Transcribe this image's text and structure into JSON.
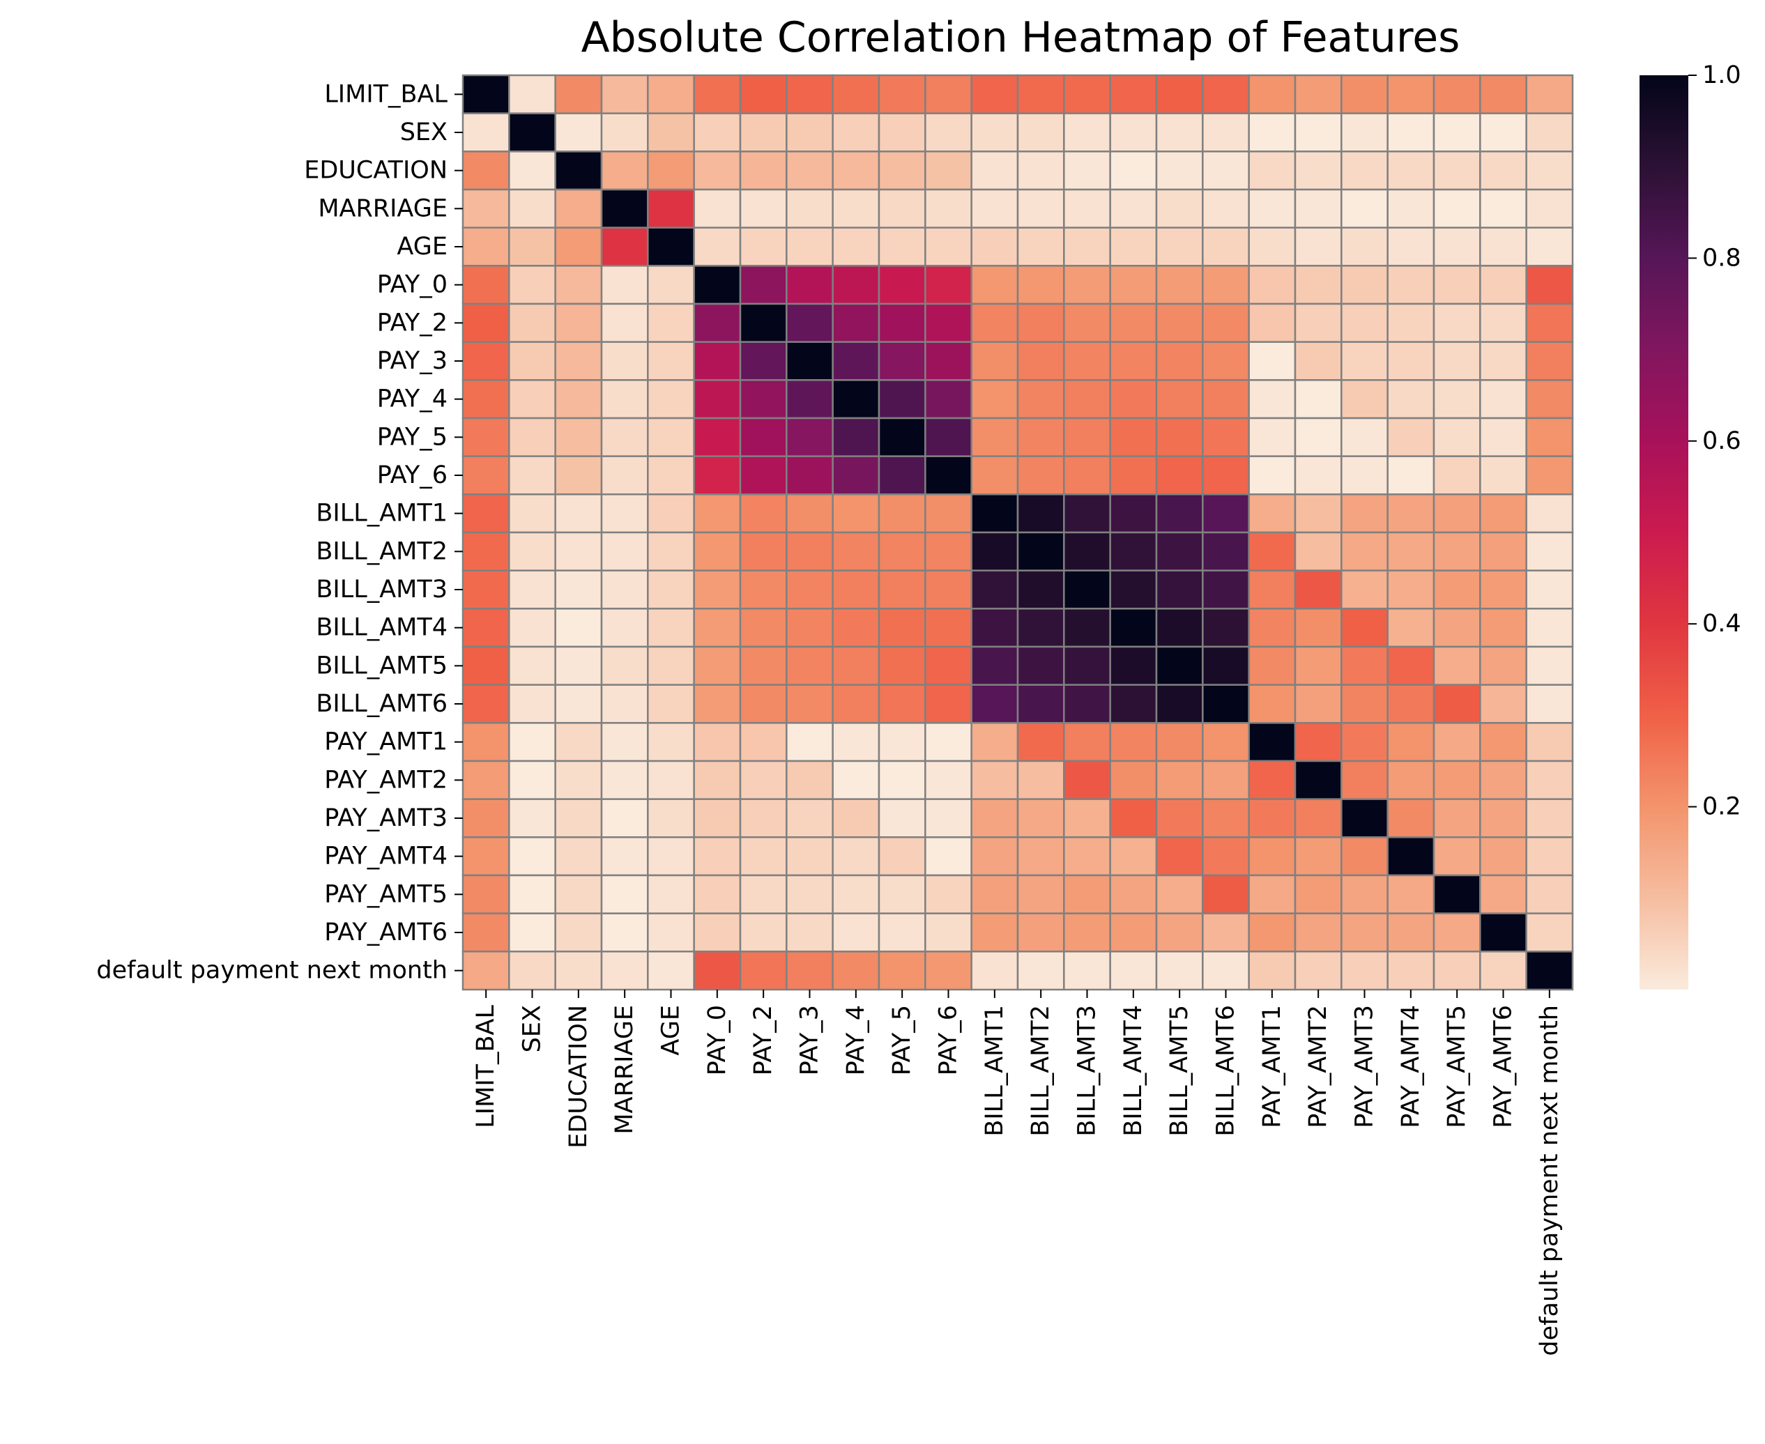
{
  "chart_data": {
    "type": "heatmap",
    "title": "Absolute Correlation Heatmap of Features",
    "xlabel": "",
    "ylabel": "",
    "labels": [
      "LIMIT_BAL",
      "SEX",
      "EDUCATION",
      "MARRIAGE",
      "AGE",
      "PAY_0",
      "PAY_2",
      "PAY_3",
      "PAY_4",
      "PAY_5",
      "PAY_6",
      "BILL_AMT1",
      "BILL_AMT2",
      "BILL_AMT3",
      "BILL_AMT4",
      "BILL_AMT5",
      "BILL_AMT6",
      "PAY_AMT1",
      "PAY_AMT2",
      "PAY_AMT3",
      "PAY_AMT4",
      "PAY_AMT5",
      "PAY_AMT6",
      "default payment next month"
    ],
    "values": [
      [
        1.0,
        0.02,
        0.22,
        0.11,
        0.14,
        0.27,
        0.3,
        0.29,
        0.27,
        0.25,
        0.24,
        0.29,
        0.28,
        0.28,
        0.29,
        0.3,
        0.29,
        0.2,
        0.18,
        0.21,
        0.2,
        0.22,
        0.22,
        0.15
      ],
      [
        0.02,
        1.0,
        0.01,
        0.03,
        0.09,
        0.06,
        0.07,
        0.07,
        0.06,
        0.06,
        0.04,
        0.03,
        0.03,
        0.02,
        0.02,
        0.02,
        0.02,
        0.0,
        0.0,
        0.01,
        0.0,
        0.0,
        0.0,
        0.04
      ],
      [
        0.22,
        0.01,
        1.0,
        0.14,
        0.18,
        0.11,
        0.12,
        0.11,
        0.11,
        0.1,
        0.09,
        0.02,
        0.02,
        0.01,
        0.0,
        0.01,
        0.01,
        0.04,
        0.03,
        0.04,
        0.04,
        0.04,
        0.04,
        0.03
      ],
      [
        0.11,
        0.03,
        0.14,
        1.0,
        0.41,
        0.02,
        0.02,
        0.03,
        0.03,
        0.04,
        0.03,
        0.02,
        0.02,
        0.02,
        0.02,
        0.03,
        0.02,
        0.01,
        0.01,
        0.0,
        0.01,
        0.0,
        0.0,
        0.02
      ],
      [
        0.14,
        0.09,
        0.18,
        0.41,
        1.0,
        0.04,
        0.05,
        0.05,
        0.05,
        0.05,
        0.05,
        0.06,
        0.05,
        0.05,
        0.05,
        0.05,
        0.05,
        0.03,
        0.02,
        0.03,
        0.02,
        0.02,
        0.02,
        0.01
      ],
      [
        0.27,
        0.06,
        0.11,
        0.02,
        0.04,
        1.0,
        0.67,
        0.57,
        0.54,
        0.51,
        0.47,
        0.19,
        0.19,
        0.18,
        0.18,
        0.18,
        0.18,
        0.08,
        0.07,
        0.07,
        0.06,
        0.06,
        0.06,
        0.32
      ],
      [
        0.3,
        0.07,
        0.12,
        0.02,
        0.05,
        0.67,
        1.0,
        0.77,
        0.66,
        0.62,
        0.58,
        0.23,
        0.24,
        0.22,
        0.22,
        0.22,
        0.22,
        0.08,
        0.06,
        0.06,
        0.05,
        0.04,
        0.04,
        0.26
      ],
      [
        0.29,
        0.07,
        0.11,
        0.03,
        0.05,
        0.57,
        0.77,
        1.0,
        0.78,
        0.69,
        0.63,
        0.21,
        0.24,
        0.23,
        0.23,
        0.23,
        0.22,
        0.0,
        0.07,
        0.05,
        0.05,
        0.04,
        0.04,
        0.24
      ],
      [
        0.27,
        0.06,
        0.11,
        0.03,
        0.05,
        0.54,
        0.66,
        0.78,
        1.0,
        0.82,
        0.72,
        0.2,
        0.23,
        0.24,
        0.25,
        0.24,
        0.24,
        0.01,
        0.0,
        0.07,
        0.04,
        0.03,
        0.02,
        0.22
      ],
      [
        0.25,
        0.06,
        0.1,
        0.04,
        0.05,
        0.51,
        0.62,
        0.69,
        0.82,
        1.0,
        0.82,
        0.21,
        0.23,
        0.24,
        0.27,
        0.27,
        0.26,
        0.01,
        0.0,
        0.01,
        0.06,
        0.03,
        0.02,
        0.2
      ],
      [
        0.24,
        0.04,
        0.09,
        0.03,
        0.05,
        0.47,
        0.58,
        0.63,
        0.72,
        0.82,
        1.0,
        0.21,
        0.23,
        0.24,
        0.27,
        0.29,
        0.29,
        0.0,
        0.01,
        0.01,
        0.0,
        0.05,
        0.03,
        0.19
      ],
      [
        0.29,
        0.03,
        0.02,
        0.02,
        0.06,
        0.19,
        0.23,
        0.21,
        0.2,
        0.21,
        0.21,
        1.0,
        0.95,
        0.89,
        0.86,
        0.83,
        0.8,
        0.14,
        0.1,
        0.16,
        0.16,
        0.17,
        0.18,
        0.02
      ],
      [
        0.28,
        0.03,
        0.02,
        0.02,
        0.05,
        0.19,
        0.24,
        0.24,
        0.23,
        0.23,
        0.23,
        0.95,
        1.0,
        0.93,
        0.89,
        0.86,
        0.83,
        0.28,
        0.1,
        0.15,
        0.15,
        0.16,
        0.17,
        0.01
      ],
      [
        0.28,
        0.02,
        0.01,
        0.02,
        0.05,
        0.18,
        0.22,
        0.23,
        0.24,
        0.24,
        0.24,
        0.89,
        0.93,
        1.0,
        0.92,
        0.88,
        0.85,
        0.24,
        0.32,
        0.13,
        0.14,
        0.18,
        0.18,
        0.01
      ],
      [
        0.29,
        0.02,
        0.0,
        0.02,
        0.05,
        0.18,
        0.22,
        0.23,
        0.25,
        0.27,
        0.27,
        0.86,
        0.89,
        0.92,
        1.0,
        0.94,
        0.9,
        0.23,
        0.21,
        0.3,
        0.13,
        0.16,
        0.18,
        0.01
      ],
      [
        0.3,
        0.02,
        0.01,
        0.03,
        0.05,
        0.18,
        0.22,
        0.23,
        0.24,
        0.27,
        0.29,
        0.83,
        0.86,
        0.88,
        0.94,
        1.0,
        0.95,
        0.22,
        0.18,
        0.25,
        0.29,
        0.14,
        0.16,
        0.01
      ],
      [
        0.29,
        0.02,
        0.01,
        0.02,
        0.05,
        0.18,
        0.22,
        0.22,
        0.24,
        0.26,
        0.29,
        0.8,
        0.83,
        0.85,
        0.9,
        0.95,
        1.0,
        0.2,
        0.17,
        0.23,
        0.25,
        0.31,
        0.12,
        0.01
      ],
      [
        0.2,
        0.0,
        0.04,
        0.01,
        0.03,
        0.08,
        0.08,
        0.0,
        0.01,
        0.01,
        0.0,
        0.14,
        0.28,
        0.24,
        0.23,
        0.22,
        0.2,
        1.0,
        0.29,
        0.25,
        0.2,
        0.15,
        0.19,
        0.07
      ],
      [
        0.18,
        0.0,
        0.03,
        0.01,
        0.02,
        0.07,
        0.06,
        0.07,
        0.0,
        0.0,
        0.01,
        0.1,
        0.1,
        0.32,
        0.21,
        0.18,
        0.17,
        0.29,
        1.0,
        0.24,
        0.18,
        0.18,
        0.16,
        0.06
      ],
      [
        0.21,
        0.01,
        0.04,
        0.0,
        0.03,
        0.07,
        0.06,
        0.05,
        0.07,
        0.01,
        0.01,
        0.16,
        0.15,
        0.13,
        0.3,
        0.25,
        0.23,
        0.25,
        0.24,
        1.0,
        0.22,
        0.16,
        0.16,
        0.06
      ],
      [
        0.2,
        0.0,
        0.04,
        0.01,
        0.02,
        0.06,
        0.05,
        0.05,
        0.04,
        0.06,
        0.0,
        0.16,
        0.15,
        0.14,
        0.13,
        0.29,
        0.25,
        0.2,
        0.18,
        0.22,
        1.0,
        0.15,
        0.16,
        0.06
      ],
      [
        0.22,
        0.0,
        0.04,
        0.0,
        0.02,
        0.06,
        0.04,
        0.04,
        0.03,
        0.03,
        0.05,
        0.17,
        0.16,
        0.18,
        0.16,
        0.14,
        0.31,
        0.15,
        0.18,
        0.16,
        0.15,
        1.0,
        0.15,
        0.06
      ],
      [
        0.22,
        0.0,
        0.04,
        0.0,
        0.02,
        0.06,
        0.04,
        0.04,
        0.02,
        0.02,
        0.03,
        0.18,
        0.17,
        0.18,
        0.18,
        0.16,
        0.12,
        0.19,
        0.16,
        0.16,
        0.16,
        0.15,
        1.0,
        0.05
      ],
      [
        0.15,
        0.04,
        0.03,
        0.02,
        0.01,
        0.32,
        0.26,
        0.24,
        0.22,
        0.2,
        0.19,
        0.02,
        0.01,
        0.01,
        0.01,
        0.01,
        0.01,
        0.07,
        0.06,
        0.06,
        0.06,
        0.06,
        0.05,
        1.0
      ]
    ],
    "colorbar": {
      "ticks": [
        "0.2",
        "0.4",
        "0.6",
        "0.8",
        "1.0"
      ],
      "tick_values": [
        0.2,
        0.4,
        0.6,
        0.8,
        1.0
      ],
      "min": 0.0,
      "max": 1.0,
      "colormap": "rocket_r"
    },
    "grid": true,
    "cell_edge_color": "#808080"
  }
}
